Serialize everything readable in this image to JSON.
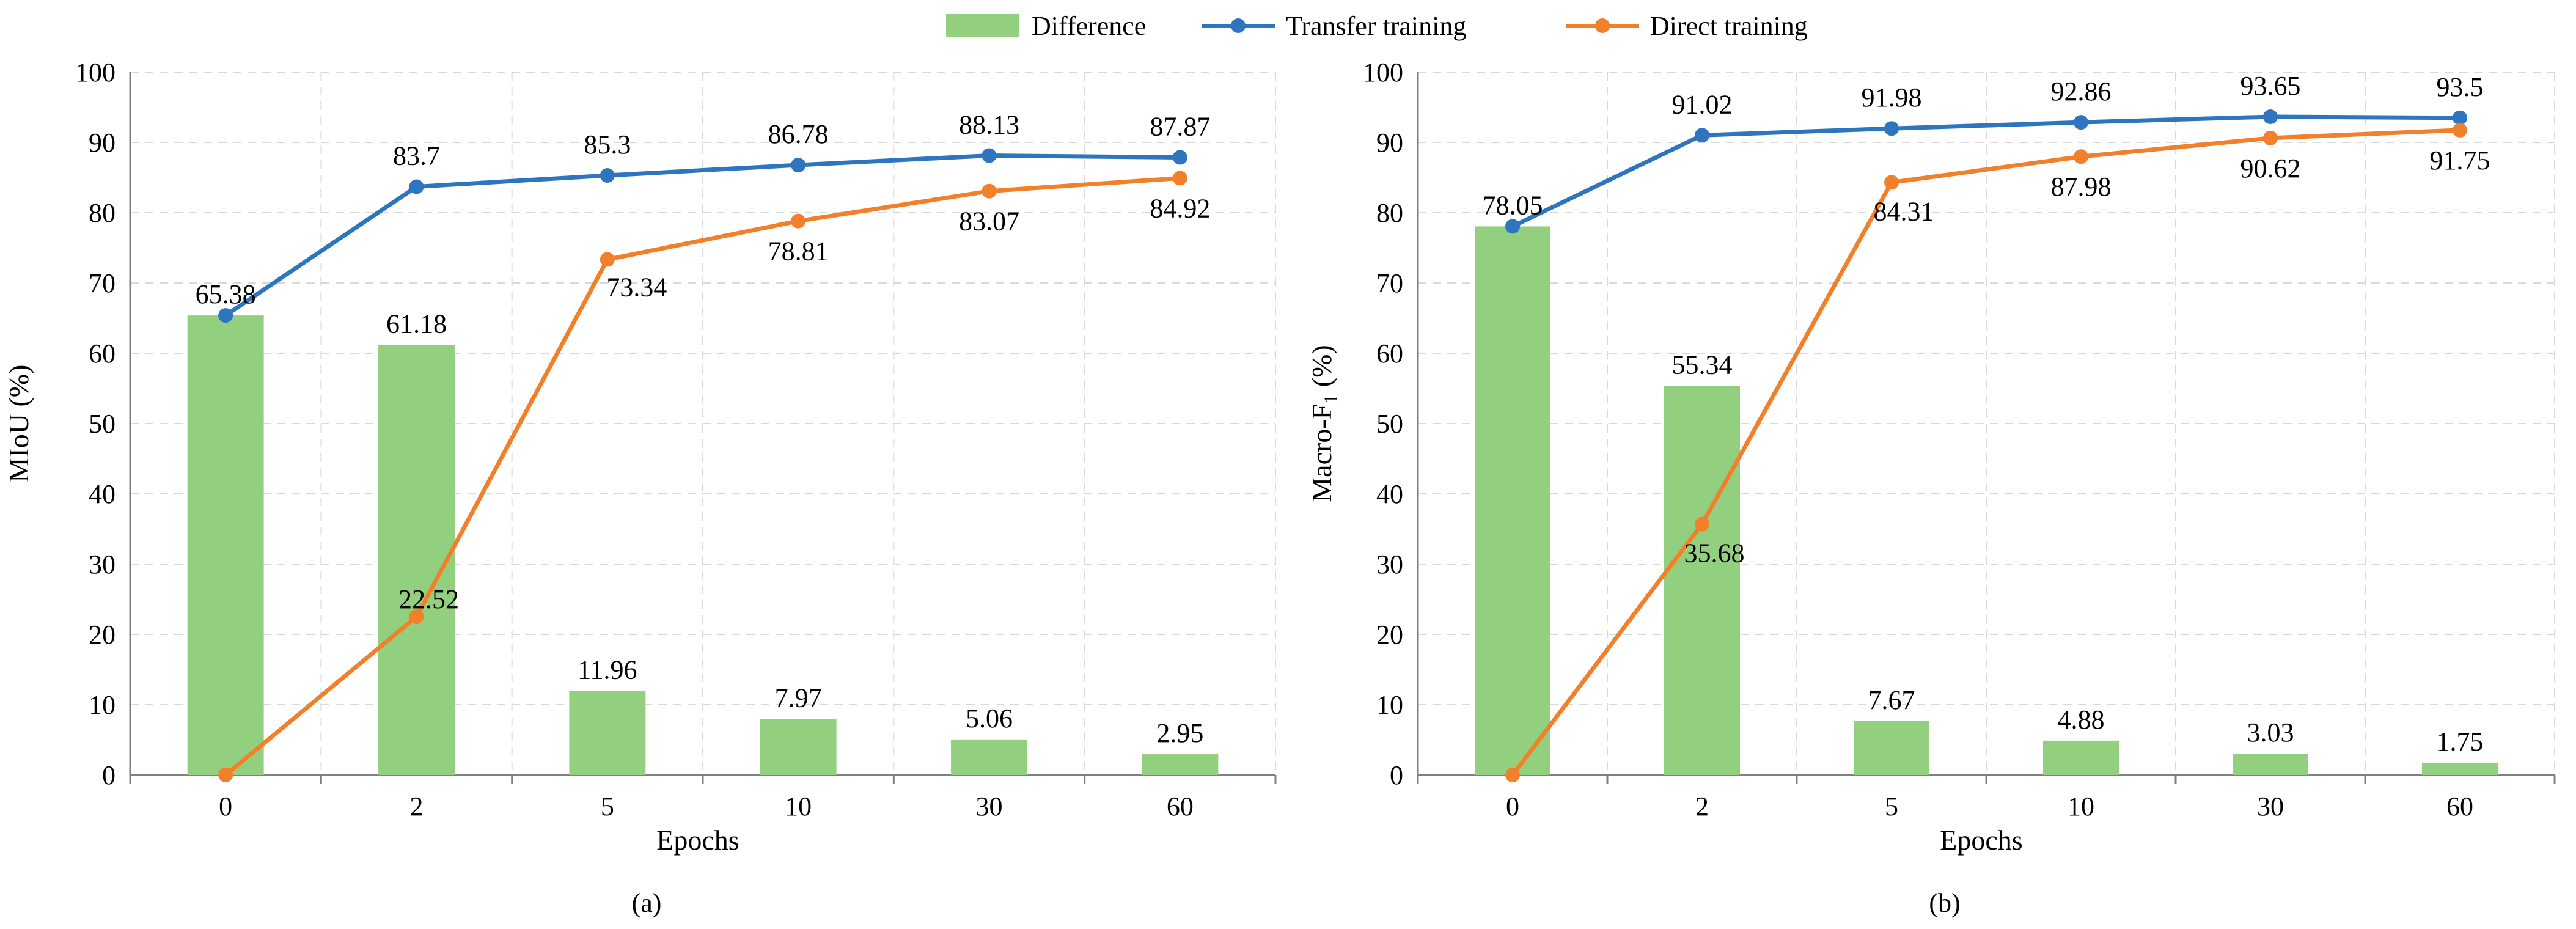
{
  "legend": {
    "difference": "Difference",
    "transfer": "Transfer training",
    "direct": "Direct training"
  },
  "colors": {
    "difference": "#92d07f",
    "transfer": "#2e75c0",
    "direct": "#f27f2a",
    "grid": "#d9d9d9",
    "axis": "#808080"
  },
  "chart_data": [
    {
      "type": "bar+line",
      "caption": "(a)",
      "xlabel": "Epochs",
      "ylabel": "MIoU (%)",
      "ylim": [
        0,
        100
      ],
      "yticks": [
        0,
        10,
        20,
        30,
        40,
        50,
        60,
        70,
        80,
        90,
        100
      ],
      "grid": true,
      "categories": [
        "0",
        "2",
        "5",
        "10",
        "30",
        "60"
      ],
      "series": [
        {
          "name": "Difference",
          "kind": "bar",
          "values": [
            65.38,
            61.18,
            11.96,
            7.97,
            5.06,
            2.95
          ],
          "labels": [
            "65.38",
            "61.18",
            "11.96",
            "7.97",
            "5.06",
            "2.95"
          ]
        },
        {
          "name": "Transfer training",
          "kind": "line",
          "values": [
            65.38,
            83.7,
            85.3,
            86.78,
            88.13,
            87.87
          ],
          "labels": [
            "",
            "83.7",
            "85.3",
            "86.78",
            "88.13",
            "87.87"
          ]
        },
        {
          "name": "Direct training",
          "kind": "line",
          "values": [
            0,
            22.52,
            73.34,
            78.81,
            83.07,
            84.92
          ],
          "labels": [
            "",
            "22.52",
            "73.34",
            "78.81",
            "83.07",
            "84.92"
          ]
        }
      ]
    },
    {
      "type": "bar+line",
      "caption": "(b)",
      "xlabel": "Epochs",
      "ylabel": "Macro-F",
      "ylabel_sub": "1",
      "ylabel_tail": " (%)",
      "ylim": [
        0,
        100
      ],
      "yticks": [
        0,
        10,
        20,
        30,
        40,
        50,
        60,
        70,
        80,
        90,
        100
      ],
      "grid": true,
      "categories": [
        "0",
        "2",
        "5",
        "10",
        "30",
        "60"
      ],
      "series": [
        {
          "name": "Difference",
          "kind": "bar",
          "values": [
            78.05,
            55.34,
            7.67,
            4.88,
            3.03,
            1.75
          ],
          "labels": [
            "78.05",
            "55.34",
            "7.67",
            "4.88",
            "3.03",
            "1.75"
          ]
        },
        {
          "name": "Transfer training",
          "kind": "line",
          "values": [
            78.05,
            91.02,
            91.98,
            92.86,
            93.65,
            93.5
          ],
          "labels": [
            "",
            "91.02",
            "91.98",
            "92.86",
            "93.65",
            "93.5"
          ]
        },
        {
          "name": "Direct training",
          "kind": "line",
          "values": [
            0,
            35.68,
            84.31,
            87.98,
            90.62,
            91.75
          ],
          "labels": [
            "",
            "35.68",
            "84.31",
            "87.98",
            "90.62",
            "91.75"
          ]
        }
      ]
    }
  ]
}
